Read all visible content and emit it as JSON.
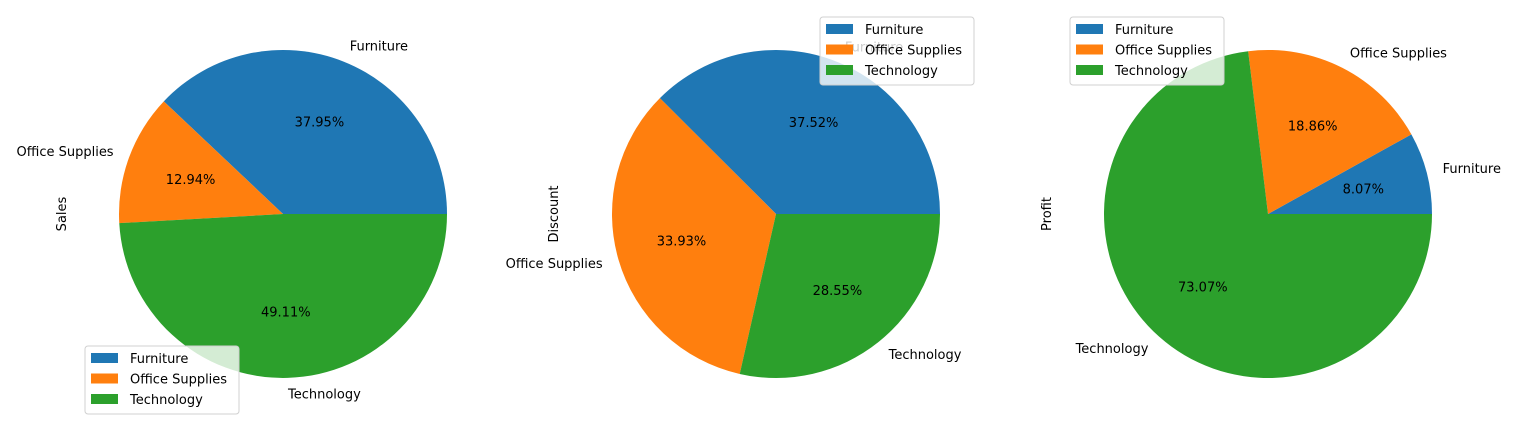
{
  "chart_data": [
    {
      "type": "pie",
      "ylabel": "Sales",
      "categories": [
        "Furniture",
        "Office Supplies",
        "Technology"
      ],
      "values": [
        37.95,
        12.94,
        49.11
      ],
      "pct_labels": [
        "37.95%",
        "12.94%",
        "49.11%"
      ],
      "legend": {
        "placement": "lower-left",
        "entries": [
          "Furniture",
          "Office Supplies",
          "Technology"
        ]
      }
    },
    {
      "type": "pie",
      "ylabel": "Discount",
      "categories": [
        "Furniture",
        "Office Supplies",
        "Technology"
      ],
      "values": [
        37.52,
        33.93,
        28.55
      ],
      "pct_labels": [
        "37.52%",
        "33.93%",
        "28.55%"
      ],
      "legend": {
        "placement": "upper-right",
        "entries": [
          "Furniture",
          "Office Supplies",
          "Technology"
        ]
      }
    },
    {
      "type": "pie",
      "ylabel": "Profit",
      "categories": [
        "Furniture",
        "Office Supplies",
        "Technology"
      ],
      "values": [
        8.07,
        18.86,
        73.07
      ],
      "pct_labels": [
        "8.07%",
        "18.86%",
        "73.07%"
      ],
      "legend": {
        "placement": "upper-left",
        "entries": [
          "Furniture",
          "Office Supplies",
          "Technology"
        ]
      }
    }
  ],
  "colors": {
    "Furniture": "#1f77b4",
    "Office Supplies": "#ff7f0e",
    "Technology": "#2ca02c"
  }
}
